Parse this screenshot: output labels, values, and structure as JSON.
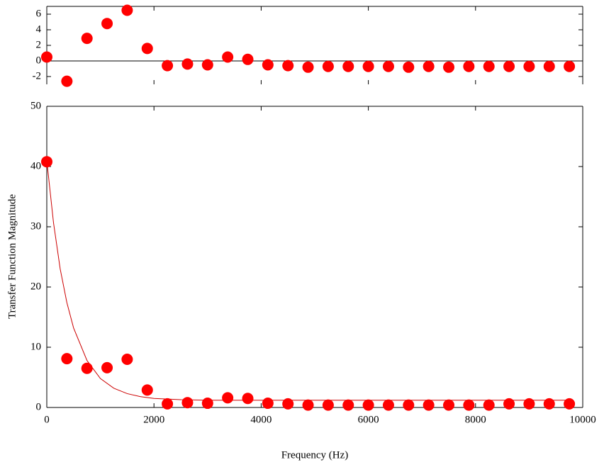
{
  "chart_data": [
    {
      "type": "scatter",
      "color": "#ff0000",
      "x": [
        0,
        375,
        750,
        1125,
        1500,
        1875,
        2250,
        2625,
        3000,
        3375,
        3750,
        4125,
        4500,
        4875,
        5250,
        5625,
        6000,
        6375,
        6750,
        7125,
        7500,
        7875,
        8250,
        8625,
        9000,
        9375,
        9750
      ],
      "values": [
        0.5,
        -2.6,
        2.9,
        4.8,
        6.5,
        1.6,
        -0.6,
        -0.4,
        -0.5,
        0.5,
        0.2,
        -0.5,
        -0.6,
        -0.8,
        -0.7,
        -0.7,
        -0.7,
        -0.7,
        -0.8,
        -0.7,
        -0.8,
        -0.7,
        -0.7,
        -0.7,
        -0.7,
        -0.7,
        -0.7
      ],
      "xlim": [
        0,
        10000
      ],
      "xticks": [
        0,
        2000,
        4000,
        6000,
        8000,
        10000
      ],
      "ylim": [
        -3,
        7
      ],
      "yticks": [
        -2,
        0,
        2,
        4,
        6
      ],
      "zero_line": true
    },
    {
      "type": "scatter",
      "color": "#ff0000",
      "x_label": "Frequency (Hz)",
      "y_label": "Transfer Function Magnitude",
      "x": [
        0,
        375,
        750,
        1125,
        1500,
        1875,
        2250,
        2625,
        3000,
        3375,
        3750,
        4125,
        4500,
        4875,
        5250,
        5625,
        6000,
        6375,
        6750,
        7125,
        7500,
        7875,
        8250,
        8625,
        9000,
        9375,
        9750
      ],
      "values": [
        40.8,
        8.1,
        6.5,
        6.6,
        8.0,
        2.9,
        0.6,
        0.8,
        0.7,
        1.6,
        1.5,
        0.7,
        0.6,
        0.4,
        0.4,
        0.4,
        0.4,
        0.4,
        0.4,
        0.4,
        0.4,
        0.4,
        0.4,
        0.6,
        0.6,
        0.6,
        0.6
      ],
      "line": {
        "color": "#cc0000",
        "x": [
          0,
          125,
          250,
          375,
          500,
          750,
          1000,
          1250,
          1500,
          1750,
          2000,
          2250,
          2500,
          3000,
          4000,
          5000,
          6000,
          7000,
          8000,
          9000,
          9750
        ],
        "values": [
          41.0,
          30.7,
          23.0,
          17.4,
          13.2,
          7.8,
          4.8,
          3.2,
          2.3,
          1.8,
          1.5,
          1.4,
          1.3,
          1.2,
          1.2,
          1.2,
          1.2,
          1.2,
          1.2,
          1.2,
          1.2
        ]
      },
      "xlim": [
        0,
        10000
      ],
      "xticks": [
        0,
        2000,
        4000,
        6000,
        8000,
        10000
      ],
      "ylim": [
        0,
        50
      ],
      "yticks": [
        0,
        10,
        20,
        30,
        40,
        50
      ]
    }
  ]
}
